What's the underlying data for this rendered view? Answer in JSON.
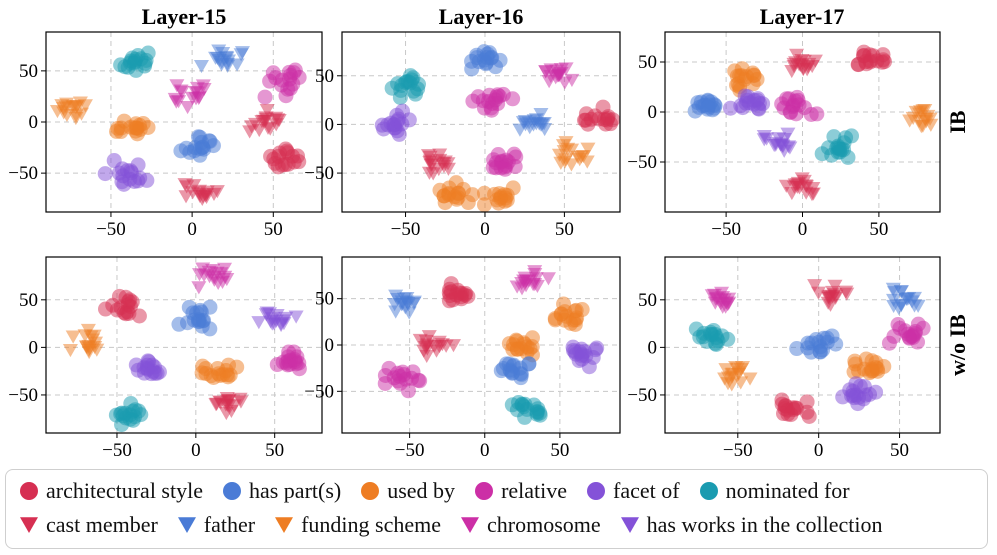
{
  "figure": {
    "column_titles": [
      "Layer-15",
      "Layer-16",
      "Layer-17"
    ],
    "row_labels": [
      "IB",
      "w/o IB"
    ]
  },
  "legend": [
    {
      "label": "architectural style",
      "marker": "circle",
      "color": "#d62f52"
    },
    {
      "label": "has part(s)",
      "marker": "circle",
      "color": "#4a7bd6"
    },
    {
      "label": "used by",
      "marker": "circle",
      "color": "#ee7d23"
    },
    {
      "label": "relative",
      "marker": "circle",
      "color": "#cc2fa6"
    },
    {
      "label": "facet of",
      "marker": "circle",
      "color": "#8452d8"
    },
    {
      "label": "nominated for",
      "marker": "circle",
      "color": "#1a9bb0"
    },
    {
      "label": "cast member",
      "marker": "triangle-down",
      "color": "#d62f52"
    },
    {
      "label": "father",
      "marker": "triangle-down",
      "color": "#4a7bd6"
    },
    {
      "label": "funding scheme",
      "marker": "triangle-down",
      "color": "#ee7d23"
    },
    {
      "label": "chromosome",
      "marker": "triangle-down",
      "color": "#cc2fa6"
    },
    {
      "label": "has works in the collection",
      "marker": "triangle-down",
      "color": "#8452d8"
    }
  ],
  "chart_data": [
    {
      "type": "scatter",
      "title": "Layer-15",
      "row": "IB",
      "xlim": [
        -90,
        80
      ],
      "ylim": [
        -88,
        88
      ],
      "xticks": [
        -50,
        0,
        50
      ],
      "yticks": [
        -50,
        0,
        50
      ],
      "grid": true,
      "clusters": [
        {
          "class": "nominated for",
          "x": -35,
          "y": 58
        },
        {
          "class": "father",
          "x": 18,
          "y": 62
        },
        {
          "class": "relative",
          "x": 58,
          "y": 38
        },
        {
          "class": "funding scheme",
          "x": -75,
          "y": 12
        },
        {
          "class": "chromosome",
          "x": -2,
          "y": 28
        },
        {
          "class": "used by",
          "x": -38,
          "y": -5
        },
        {
          "class": "has part(s)",
          "x": 5,
          "y": -25
        },
        {
          "class": "cast member",
          "x": 45,
          "y": 0
        },
        {
          "class": "architectural style",
          "x": 60,
          "y": -35
        },
        {
          "class": "facet of",
          "x": -40,
          "y": -50
        },
        {
          "class": "cast member",
          "x": 5,
          "y": -70
        }
      ]
    },
    {
      "type": "scatter",
      "title": "Layer-16",
      "row": "IB",
      "xlim": [
        -90,
        85
      ],
      "ylim": [
        -90,
        95
      ],
      "xticks": [
        -50,
        0,
        50
      ],
      "yticks": [
        -50,
        0,
        50
      ],
      "grid": true,
      "clusters": [
        {
          "class": "nominated for",
          "x": -50,
          "y": 40
        },
        {
          "class": "has part(s)",
          "x": 0,
          "y": 65
        },
        {
          "class": "chromosome",
          "x": 45,
          "y": 52
        },
        {
          "class": "relative",
          "x": 5,
          "y": 25
        },
        {
          "class": "facet of",
          "x": -55,
          "y": 0
        },
        {
          "class": "father",
          "x": 30,
          "y": 0
        },
        {
          "class": "architectural style",
          "x": 70,
          "y": 5
        },
        {
          "class": "cast member",
          "x": -30,
          "y": -40
        },
        {
          "class": "relative",
          "x": 10,
          "y": -40
        },
        {
          "class": "funding scheme",
          "x": 55,
          "y": -30
        },
        {
          "class": "used by",
          "x": -20,
          "y": -70
        },
        {
          "class": "used by",
          "x": 10,
          "y": -75
        }
      ]
    },
    {
      "type": "scatter",
      "title": "Layer-17",
      "row": "IB",
      "xlim": [
        -90,
        90
      ],
      "ylim": [
        -100,
        80
      ],
      "xticks": [
        -50,
        0,
        50
      ],
      "yticks": [
        -50,
        0,
        50
      ],
      "grid": true,
      "clusters": [
        {
          "class": "has part(s)",
          "x": -60,
          "y": 5
        },
        {
          "class": "used by",
          "x": -40,
          "y": 30
        },
        {
          "class": "cast member",
          "x": 0,
          "y": 48
        },
        {
          "class": "architectural style",
          "x": 48,
          "y": 52
        },
        {
          "class": "relative",
          "x": -5,
          "y": 5
        },
        {
          "class": "facet of",
          "x": -35,
          "y": 10
        },
        {
          "class": "has works in the collection",
          "x": -15,
          "y": -30
        },
        {
          "class": "nominated for",
          "x": 25,
          "y": -35
        },
        {
          "class": "funding scheme",
          "x": 80,
          "y": -5
        },
        {
          "class": "cast member",
          "x": 0,
          "y": -75
        }
      ]
    },
    {
      "type": "scatter",
      "title": "Layer-15",
      "row": "w/o IB",
      "xlim": [
        -95,
        80
      ],
      "ylim": [
        -90,
        95
      ],
      "xticks": [
        -50,
        0,
        50
      ],
      "yticks": [
        -50,
        0,
        50
      ],
      "grid": true,
      "clusters": [
        {
          "class": "architectural style",
          "x": -45,
          "y": 45
        },
        {
          "class": "chromosome",
          "x": 10,
          "y": 75
        },
        {
          "class": "has part(s)",
          "x": 0,
          "y": 30
        },
        {
          "class": "has works in the collection",
          "x": 50,
          "y": 30
        },
        {
          "class": "funding scheme",
          "x": -70,
          "y": 5
        },
        {
          "class": "facet of",
          "x": -30,
          "y": -20
        },
        {
          "class": "relative",
          "x": 60,
          "y": -15
        },
        {
          "class": "used by",
          "x": 15,
          "y": -25
        },
        {
          "class": "cast member",
          "x": 20,
          "y": -60
        },
        {
          "class": "nominated for",
          "x": -40,
          "y": -70
        }
      ]
    },
    {
      "type": "scatter",
      "title": "Layer-16",
      "row": "w/o IB",
      "xlim": [
        -95,
        90
      ],
      "ylim": [
        -95,
        95
      ],
      "xticks": [
        -50,
        0,
        50
      ],
      "yticks": [
        -50,
        0,
        50
      ],
      "grid": true,
      "clusters": [
        {
          "class": "father",
          "x": -55,
          "y": 45
        },
        {
          "class": "architectural style",
          "x": -20,
          "y": 55
        },
        {
          "class": "chromosome",
          "x": 30,
          "y": 70
        },
        {
          "class": "used by",
          "x": 55,
          "y": 30
        },
        {
          "class": "cast member",
          "x": -35,
          "y": 0
        },
        {
          "class": "used by",
          "x": 25,
          "y": 0
        },
        {
          "class": "facet of",
          "x": 65,
          "y": -10
        },
        {
          "class": "has part(s)",
          "x": 20,
          "y": -25
        },
        {
          "class": "relative",
          "x": -55,
          "y": -35
        },
        {
          "class": "nominated for",
          "x": 30,
          "y": -70
        }
      ]
    },
    {
      "type": "scatter",
      "title": "Layer-17",
      "row": "w/o IB",
      "xlim": [
        -95,
        75
      ],
      "ylim": [
        -90,
        95
      ],
      "xticks": [
        -50,
        0,
        50
      ],
      "yticks": [
        -50,
        0,
        50
      ],
      "grid": true,
      "clusters": [
        {
          "class": "chromosome",
          "x": -60,
          "y": 50
        },
        {
          "class": "cast member",
          "x": 5,
          "y": 55
        },
        {
          "class": "father",
          "x": 50,
          "y": 50
        },
        {
          "class": "nominated for",
          "x": -65,
          "y": 10
        },
        {
          "class": "has part(s)",
          "x": 0,
          "y": 5
        },
        {
          "class": "relative",
          "x": 55,
          "y": 15
        },
        {
          "class": "funding scheme",
          "x": -50,
          "y": -30
        },
        {
          "class": "used by",
          "x": 30,
          "y": -20
        },
        {
          "class": "facet of",
          "x": 25,
          "y": -50
        },
        {
          "class": "architectural style",
          "x": -15,
          "y": -65
        }
      ]
    }
  ]
}
